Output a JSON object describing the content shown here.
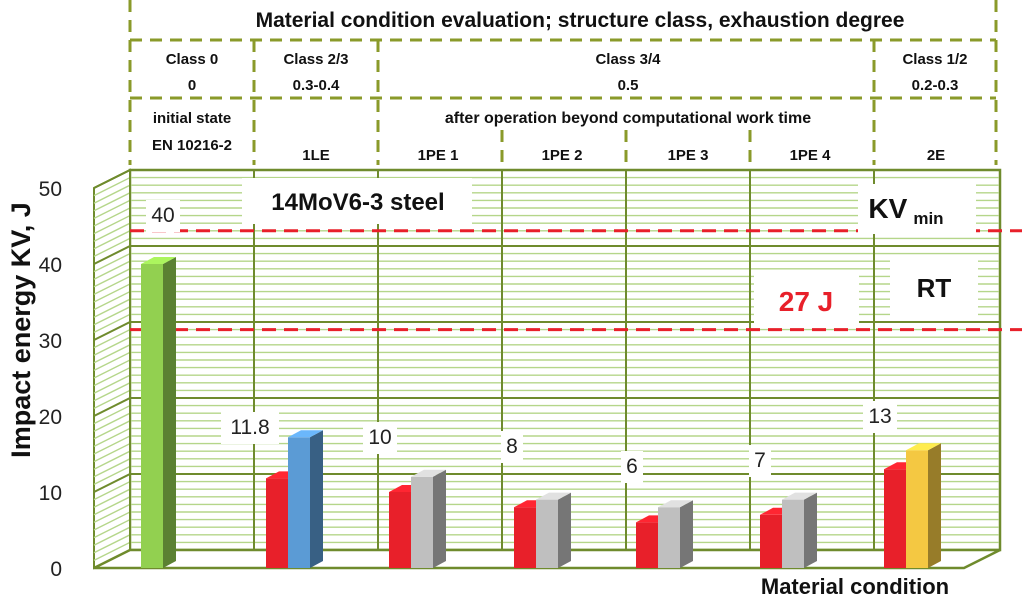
{
  "chart_data": {
    "type": "bar",
    "header_title": "Material condition evaluation; structure class, exhaustion degree",
    "class_groups": [
      {
        "class_label": "Class 0",
        "degree": "0"
      },
      {
        "class_label": "Class 2/3",
        "degree": "0.3-0.4"
      },
      {
        "class_label": "Class 3/4",
        "degree": "0.5"
      },
      {
        "class_label": "Class 1/2",
        "degree": "0.2-0.3"
      }
    ],
    "state_initial_line1": "initial state",
    "state_initial_line2": "EN 10216-2",
    "state_after_operation": "after operation beyond computational work  time",
    "categories": [
      "",
      "1LE",
      "1PE 1",
      "1PE 2",
      "1PE 3",
      "1PE 4",
      "2E"
    ],
    "series": [
      {
        "values": [
          40,
          11.8,
          10,
          8,
          6,
          7,
          13
        ],
        "color": "#e8202a"
      },
      {
        "values": [
          null,
          17.2,
          12,
          9,
          8,
          9,
          15.5
        ],
        "colors": [
          "#5b9bd5",
          "#5b9bd5",
          "#bfbfbf",
          "#bfbfbf",
          "#bfbfbf",
          "#bfbfbf",
          "#f4c842"
        ]
      }
    ],
    "first_bar_color": "#92d050",
    "data_labels": [
      "40",
      "11.8",
      "10",
      "8",
      "6",
      "7",
      "13"
    ],
    "ylabel": "Impact energy KV, J",
    "xlabel": "Material condition",
    "yticks": [
      "0",
      "10",
      "20",
      "30",
      "40",
      "50"
    ],
    "ylim": [
      0,
      50
    ],
    "annotations": {
      "steel": "14MoV6-3 steel",
      "kv": "KV",
      "kv_sub": "min",
      "rt": "RT",
      "limit": "27 J"
    },
    "reference_lines": [
      42,
      29
    ],
    "grid": true,
    "colors": {
      "frame": "#6f8b2d",
      "grid": "#b5d68a",
      "limit": "#e8202a",
      "dashed_frame": "#8a9a2a"
    }
  }
}
